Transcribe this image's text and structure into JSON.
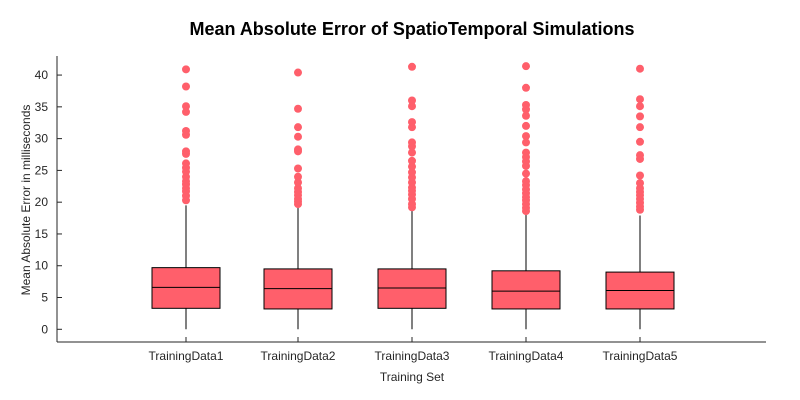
{
  "chart_data": {
    "type": "box",
    "title": "Mean Absolute Error of SpatioTemporal Simulations",
    "xlabel": "Training Set",
    "ylabel": "Mean Absolute Error in milliseconds",
    "ylim": [
      -2,
      43
    ],
    "yticks": [
      0,
      5,
      10,
      15,
      20,
      25,
      30,
      35,
      40
    ],
    "categories": [
      "TrainingData1",
      "TrainingData2",
      "TrainingData3",
      "TrainingData4",
      "TrainingData5"
    ],
    "box_color": "#ff5f6b",
    "grid": false,
    "series": [
      {
        "whisker_low": 0,
        "q1": 3.3,
        "median": 6.6,
        "q3": 9.7,
        "whisker_high": 19.5,
        "outliers": [
          20.3,
          21.0,
          21.7,
          22.2,
          22.8,
          23.3,
          24.0,
          24.8,
          25.4,
          26.1,
          27.6,
          28.0,
          30.6,
          31.2,
          34.2,
          35.1,
          38.2,
          40.9
        ]
      },
      {
        "whisker_low": 0,
        "q1": 3.2,
        "median": 6.4,
        "q3": 9.5,
        "whisker_high": 19.4,
        "outliers": [
          19.7,
          20.1,
          20.5,
          21.1,
          21.6,
          22.2,
          23.1,
          24.0,
          25.3,
          28.0,
          28.3,
          30.3,
          31.8,
          34.7,
          40.4
        ]
      },
      {
        "whisker_low": 0,
        "q1": 3.3,
        "median": 6.5,
        "q3": 9.5,
        "whisker_high": 18.9,
        "outliers": [
          19.2,
          19.7,
          20.5,
          21.2,
          21.8,
          22.3,
          23.1,
          23.9,
          24.7,
          25.6,
          26.5,
          27.8,
          28.8,
          29.4,
          31.8,
          32.6,
          35.1,
          36.0,
          41.3
        ]
      },
      {
        "whisker_low": 0,
        "q1": 3.2,
        "median": 6.0,
        "q3": 9.2,
        "whisker_high": 18.2,
        "outliers": [
          18.6,
          19.1,
          19.7,
          20.3,
          20.8,
          21.4,
          22.0,
          22.7,
          23.3,
          24.5,
          25.7,
          26.4,
          27.1,
          27.8,
          29.4,
          30.4,
          32.0,
          33.6,
          34.6,
          35.3,
          38.0,
          41.4
        ]
      },
      {
        "whisker_low": 0,
        "q1": 3.2,
        "median": 6.1,
        "q3": 9.0,
        "whisker_high": 17.9,
        "outliers": [
          18.8,
          19.3,
          19.9,
          20.5,
          21.1,
          21.6,
          22.2,
          23.0,
          24.2,
          26.8,
          27.4,
          29.5,
          31.8,
          33.5,
          35.1,
          36.2,
          41.0
        ]
      }
    ]
  }
}
